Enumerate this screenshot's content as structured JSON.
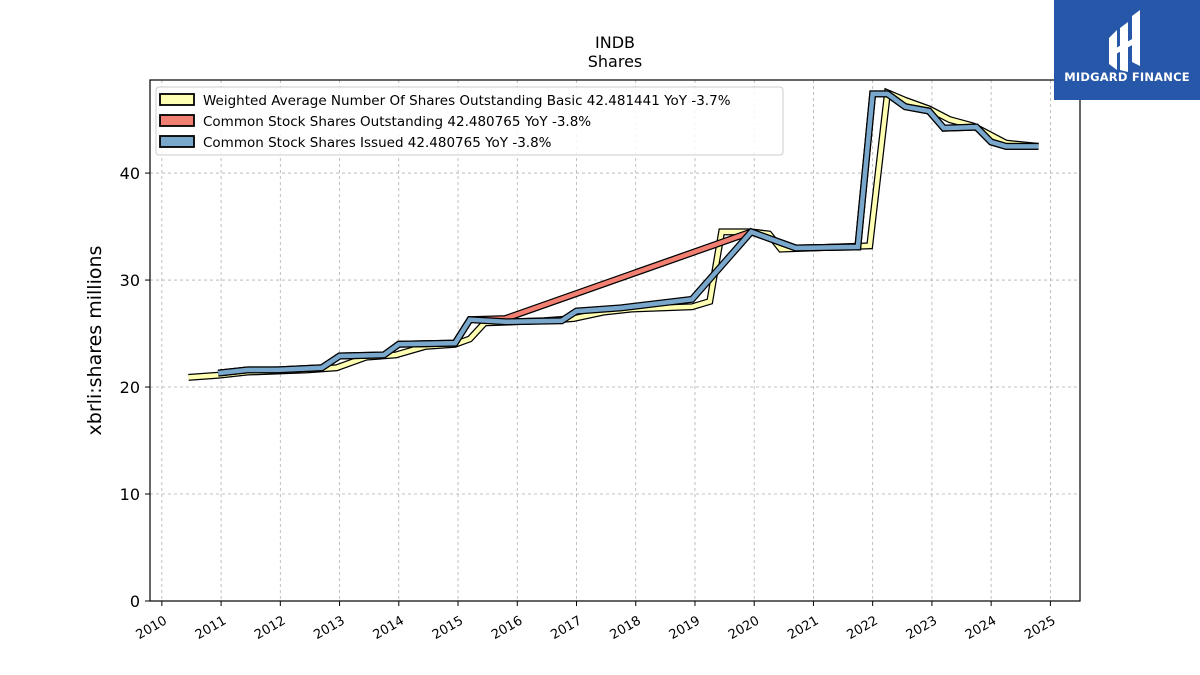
{
  "chart_data": {
    "type": "line",
    "title": "INDB",
    "subtitle": "Shares",
    "ylabel": "xbrli:shares millions",
    "xlabel": "",
    "xlim": [
      2009.8,
      2025.5
    ],
    "ylim": [
      0,
      48.7
    ],
    "xticks": [
      "2010",
      "2011",
      "2012",
      "2013",
      "2014",
      "2015",
      "2016",
      "2017",
      "2018",
      "2019",
      "2020",
      "2021",
      "2022",
      "2023",
      "2024",
      "2025"
    ],
    "yticks": [
      "0",
      "10",
      "20",
      "30",
      "40"
    ],
    "grid": true,
    "legend_position": "top-left",
    "series": [
      {
        "name": "Weighted Average Number Of Shares Outstanding Basic  42.481441 YoY -3.7%",
        "color": "#ffffb3",
        "x": [
          2010.45,
          2010.95,
          2011.45,
          2011.95,
          2012.45,
          2012.95,
          2013.45,
          2013.95,
          2014.45,
          2014.95,
          2015.2,
          2015.45,
          2015.95,
          2016.45,
          2016.95,
          2017.45,
          2017.95,
          2018.45,
          2018.95,
          2019.25,
          2019.45,
          2019.95,
          2020.25,
          2020.45,
          2020.95,
          2021.45,
          2021.95,
          2022.25,
          2022.55,
          2022.95,
          2023.3,
          2023.7,
          2024.25,
          2024.8
        ],
        "y": [
          20.9,
          21.1,
          21.4,
          21.5,
          21.6,
          21.8,
          22.8,
          23.0,
          23.8,
          24.0,
          24.5,
          26.0,
          26.1,
          26.2,
          26.4,
          27.0,
          27.3,
          27.4,
          27.5,
          28.0,
          34.5,
          34.5,
          34.3,
          32.9,
          33.0,
          33.1,
          33.2,
          47.5,
          46.8,
          46.0,
          45.0,
          44.4,
          42.8,
          42.5
        ]
      },
      {
        "name": "Common Stock Shares Outstanding  42.480765 YoY -3.8%",
        "color": "#f28072",
        "x": [
          2010.95,
          2011.45,
          2011.95,
          2012.7,
          2013.0,
          2013.75,
          2014.0,
          2014.95,
          2015.2,
          2015.8,
          2019.95,
          2020.7,
          2021.75,
          2022.0,
          2022.25,
          2022.55,
          2022.95,
          2023.2,
          2023.75,
          2024.0,
          2024.25,
          2024.8
        ],
        "y": [
          21.3,
          21.6,
          21.6,
          21.8,
          22.9,
          23.0,
          24.0,
          24.1,
          26.3,
          26.4,
          34.5,
          33.0,
          33.1,
          47.4,
          47.4,
          46.2,
          45.8,
          44.2,
          44.3,
          42.9,
          42.5,
          42.5
        ]
      },
      {
        "name": "Common Stock Shares Issued  42.480765 YoY -3.8%",
        "color": "#7aa8cc",
        "x": [
          2010.95,
          2011.45,
          2011.95,
          2012.7,
          2013.0,
          2013.75,
          2014.0,
          2014.95,
          2015.2,
          2015.8,
          2016.75,
          2017.0,
          2017.75,
          2018.95,
          2019.95,
          2020.7,
          2021.75,
          2022.0,
          2022.25,
          2022.55,
          2022.95,
          2023.2,
          2023.75,
          2024.0,
          2024.25,
          2024.8
        ],
        "y": [
          21.3,
          21.6,
          21.6,
          21.8,
          22.9,
          23.0,
          24.0,
          24.1,
          26.3,
          26.1,
          26.2,
          27.1,
          27.4,
          28.2,
          34.5,
          33.0,
          33.1,
          47.4,
          47.4,
          46.2,
          45.8,
          44.2,
          44.3,
          42.9,
          42.5,
          42.5
        ]
      }
    ]
  },
  "logo": {
    "text": "MIDGARD FINANCE",
    "color": "#2757a8"
  }
}
